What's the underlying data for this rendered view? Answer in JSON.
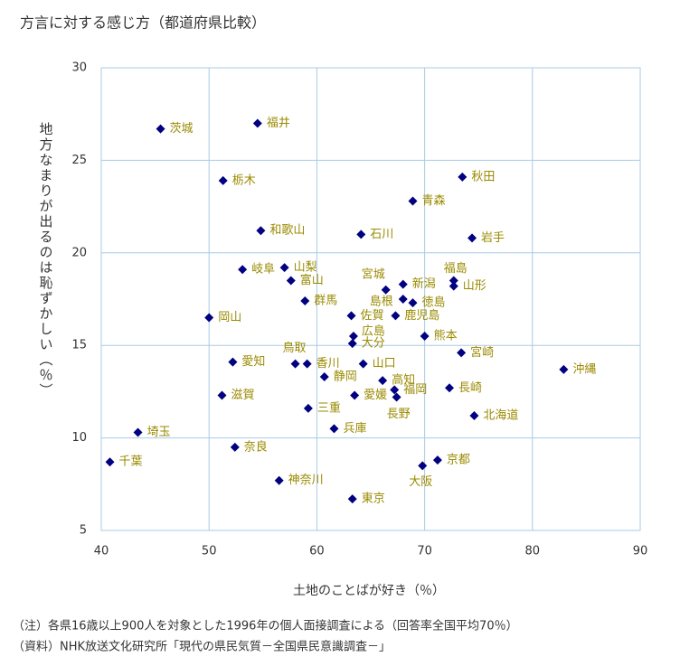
{
  "chart_data": {
    "type": "scatter",
    "title": "方言に対する感じ方（都道府県比較）",
    "x_label": "土地のことばが好き（％）",
    "y_label": "地方なまりが出るのは恥ずかしい（％）",
    "labels": [
      "茨城",
      "福井",
      "栃木",
      "秋田",
      "青森",
      "和歌山",
      "石川",
      "岩手",
      "岐阜",
      "山梨",
      "富山",
      "宮城",
      "新潟",
      "福島",
      "山形",
      "群馬",
      "島根",
      "徳島",
      "岡山",
      "佐賀",
      "鹿児島",
      "広島",
      "熊本",
      "大分",
      "宮崎",
      "鳥取",
      "愛知",
      "香川",
      "山口",
      "沖縄",
      "静岡",
      "高知",
      "長崎",
      "滋賀",
      "愛媛",
      "福岡",
      "長野",
      "三重",
      "北海道",
      "兵庫",
      "埼玉",
      "奈良",
      "千葉",
      "京都",
      "大阪",
      "神奈川",
      "東京"
    ],
    "x": [
      45.5,
      54.5,
      51.3,
      73.5,
      68.9,
      54.8,
      64.1,
      74.4,
      53.1,
      57.0,
      57.6,
      66.4,
      68.0,
      72.7,
      72.7,
      58.9,
      68.0,
      68.9,
      50.0,
      63.2,
      67.3,
      63.4,
      70.0,
      63.3,
      73.4,
      58.0,
      52.2,
      59.1,
      64.3,
      82.9,
      60.7,
      66.1,
      72.3,
      51.2,
      63.5,
      67.2,
      67.4,
      59.2,
      74.6,
      61.6,
      43.4,
      52.4,
      40.8,
      71.2,
      69.8,
      56.5,
      63.3
    ],
    "values": [
      26.7,
      27.0,
      23.9,
      24.1,
      22.8,
      21.2,
      21.0,
      20.8,
      19.1,
      19.2,
      18.5,
      18.0,
      18.3,
      18.5,
      18.2,
      17.4,
      17.5,
      17.3,
      16.5,
      16.6,
      16.6,
      15.5,
      15.5,
      15.1,
      14.6,
      14.0,
      14.1,
      14.0,
      14.0,
      13.7,
      13.3,
      13.1,
      12.7,
      12.3,
      12.3,
      12.6,
      12.2,
      11.6,
      11.2,
      10.5,
      10.3,
      9.5,
      8.7,
      8.8,
      8.5,
      7.7,
      6.7
    ],
    "color": "#000080",
    "label_color": "#9a8a00",
    "xlim": [
      40,
      90
    ],
    "xticks": [
      40,
      50,
      60,
      70,
      80,
      90
    ],
    "ylim": [
      5,
      30
    ],
    "yticks": [
      5,
      10,
      15,
      20,
      25,
      30
    ],
    "grid": true,
    "notes": [
      "（注）各県16歳以上900人を対象とした1996年の個人面接調査による（回答率全国平均70％）",
      "（資料）NHK放送文化研究所「現代の県民気質－全国県民意識調査－」"
    ]
  }
}
